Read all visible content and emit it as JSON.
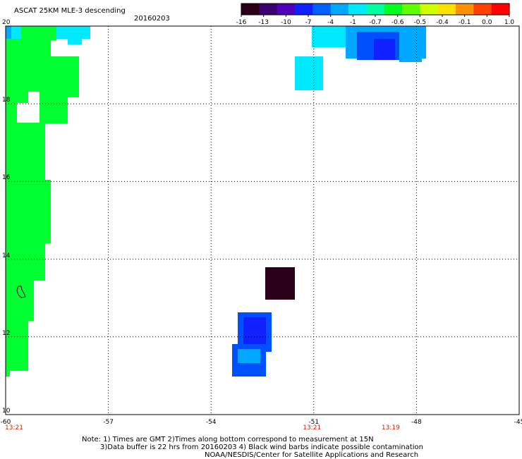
{
  "header": {
    "title": "ASCAT 25KM MLE-3 descending",
    "date": "20160203"
  },
  "colorbar": {
    "labels": [
      "-16",
      "-13",
      "-10",
      "-7",
      "-4",
      "-1",
      "-0.7",
      "-0.6",
      "-0.5",
      "-0.4",
      "-0.1",
      "0.0",
      "1.0"
    ],
    "colors": [
      "#2a0018",
      "#3a0070",
      "#5000b8",
      "#1020ff",
      "#0060ff",
      "#00a8ff",
      "#00e8ff",
      "#00ffa0",
      "#00ff20",
      "#60ff00",
      "#d0ff00",
      "#ffe000",
      "#ff9000",
      "#ff4000",
      "#ff0000"
    ]
  },
  "map": {
    "lat_labels": [
      "20",
      "18",
      "16",
      "14",
      "12",
      "10"
    ],
    "lon_labels": [
      "-60",
      "-57",
      "-54",
      "-51",
      "-48",
      "-45"
    ],
    "times": [
      {
        "lon": -60,
        "label": "13:21"
      },
      {
        "lon": -51.3,
        "label": "13:21"
      },
      {
        "lon": -49,
        "label": "13:19"
      }
    ],
    "colors": {
      "green": "#00ff30",
      "cyan": "#00e8ff",
      "light_blue": "#00a8ff",
      "blue": "#0050ff",
      "deep_blue": "#1020ff",
      "dark": "#2a0018"
    }
  },
  "footer": {
    "line1": "Note: 1) Times are GMT 2)Times along bottom correspond to measurement at 15N",
    "line2": "3)Data buffer is 22 hrs from 20160203 4) Black wind barbs indicate possible contamination",
    "line3": "NOAA/NESDIS/Center for Satellite Applications and Research"
  }
}
